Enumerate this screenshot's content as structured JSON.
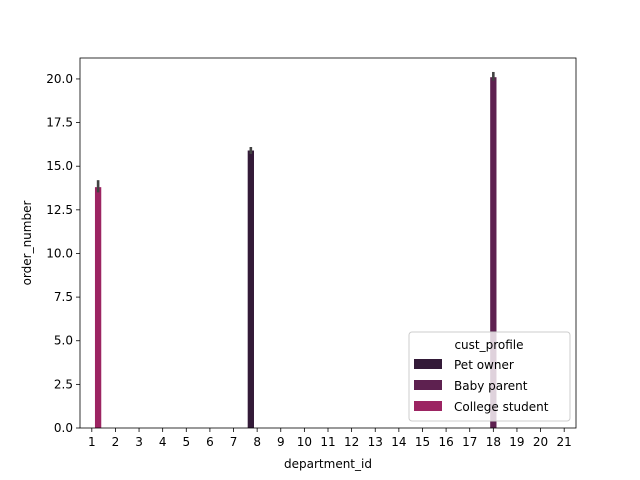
{
  "chart_data": {
    "type": "bar",
    "title": "",
    "xlabel": "department_id",
    "ylabel": "order_number",
    "categories": [
      "1",
      "2",
      "3",
      "4",
      "5",
      "6",
      "7",
      "8",
      "9",
      "10",
      "11",
      "12",
      "13",
      "14",
      "15",
      "16",
      "17",
      "18",
      "19",
      "20",
      "21"
    ],
    "ylim": [
      0,
      21.2
    ],
    "yticks": [
      "0.0",
      "2.5",
      "5.0",
      "7.5",
      "10.0",
      "12.5",
      "15.0",
      "17.5",
      "20.0"
    ],
    "grid": false,
    "legend": {
      "title": "cust_profile",
      "placement": "lower-right",
      "entries": [
        "Pet owner",
        "Baby parent",
        "College student"
      ]
    },
    "series": [
      {
        "name": "Pet owner",
        "color": "#331a38",
        "category": "8",
        "value": 15.9,
        "ci": [
          15.7,
          16.1
        ]
      },
      {
        "name": "Baby parent",
        "color": "#5e2150",
        "category": "18",
        "value": 20.1,
        "ci": [
          19.9,
          20.4
        ]
      },
      {
        "name": "College student",
        "color": "#9c2462",
        "category": "1",
        "value": 13.8,
        "ci": [
          13.5,
          14.2
        ]
      }
    ]
  }
}
